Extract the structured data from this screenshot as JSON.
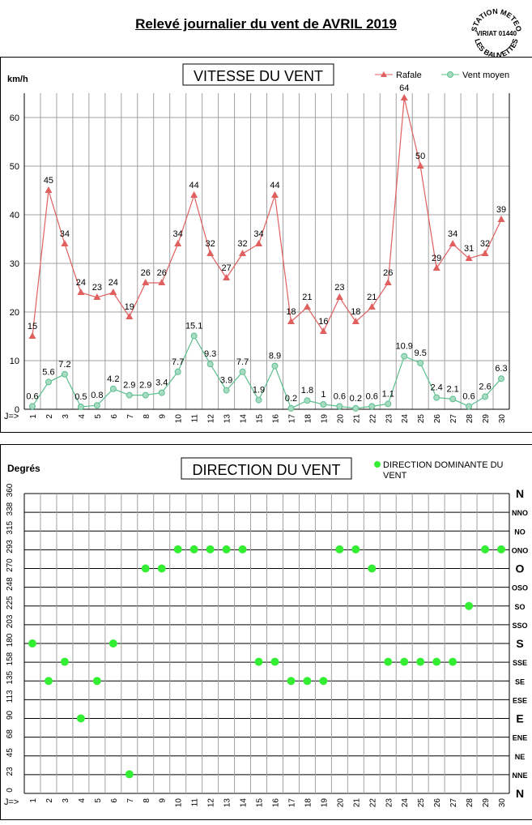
{
  "page": {
    "title": "Relevé journalier du vent de AVRIL 2019",
    "stamp_text": [
      "STATION METEO",
      "VIRIAT 01440",
      "LES BAUVETTES"
    ]
  },
  "chart_data": [
    {
      "type": "line",
      "title": "VITESSE DU VENT",
      "ylabel": "km/h",
      "xlabel": "J=>",
      "ylim": [
        0,
        65
      ],
      "yticks": [
        0,
        10,
        20,
        30,
        40,
        50,
        60
      ],
      "grid": true,
      "legend_position": "top-right",
      "categories": [
        1,
        2,
        3,
        4,
        5,
        6,
        7,
        8,
        9,
        10,
        11,
        12,
        13,
        14,
        15,
        16,
        17,
        18,
        19,
        20,
        21,
        22,
        23,
        24,
        25,
        26,
        27,
        28,
        29,
        30
      ],
      "series": [
        {
          "name": "Rafale",
          "color": "#e06060",
          "marker": "triangle",
          "values": [
            15,
            45,
            34,
            24,
            23,
            24,
            19,
            26,
            26,
            34,
            44,
            32,
            27,
            32,
            34,
            44,
            18,
            21,
            16,
            23,
            18,
            21,
            26,
            64,
            50,
            29,
            34,
            31,
            32,
            39
          ]
        },
        {
          "name": "Vent moyen",
          "color": "#5cbf8f",
          "marker": "circle",
          "values": [
            0.6,
            5.6,
            7.2,
            0.5,
            0.8,
            4.2,
            2.9,
            2.9,
            3.4,
            7.7,
            15.1,
            9.3,
            3.9,
            7.7,
            1.9,
            8.9,
            0.2,
            1.8,
            1,
            0.6,
            0.2,
            0.6,
            1.1,
            10.9,
            9.5,
            2.4,
            2.1,
            0.6,
            2.6,
            6.3
          ]
        }
      ]
    },
    {
      "type": "scatter",
      "title": "DIRECTION DU VENT",
      "ylabel": "Degrés",
      "xlabel": "J=>",
      "ylim": [
        0,
        360
      ],
      "yticks": [
        0,
        23,
        45,
        68,
        90,
        113,
        135,
        158,
        180,
        203,
        225,
        248,
        270,
        293,
        315,
        338,
        360
      ],
      "compass_labels": [
        "N",
        "NNE",
        "NE",
        "ENE",
        "E",
        "ESE",
        "SE",
        "SSE",
        "S",
        "SSO",
        "SO",
        "OSO",
        "O",
        "ONO",
        "NO",
        "NNO",
        "N"
      ],
      "grid": true,
      "legend_position": "top-right",
      "categories": [
        1,
        2,
        3,
        4,
        5,
        6,
        7,
        8,
        9,
        10,
        11,
        12,
        13,
        14,
        15,
        16,
        17,
        18,
        19,
        20,
        21,
        22,
        23,
        24,
        25,
        26,
        27,
        28,
        29,
        30
      ],
      "series": [
        {
          "name": "DIRECTION DOMINANTE DU VENT",
          "color": "#33ee33",
          "values": [
            180,
            135,
            158,
            90,
            135,
            180,
            23,
            270,
            270,
            293,
            293,
            293,
            293,
            293,
            158,
            158,
            135,
            135,
            135,
            293,
            293,
            270,
            158,
            158,
            158,
            158,
            158,
            225,
            293,
            293
          ]
        }
      ]
    }
  ]
}
